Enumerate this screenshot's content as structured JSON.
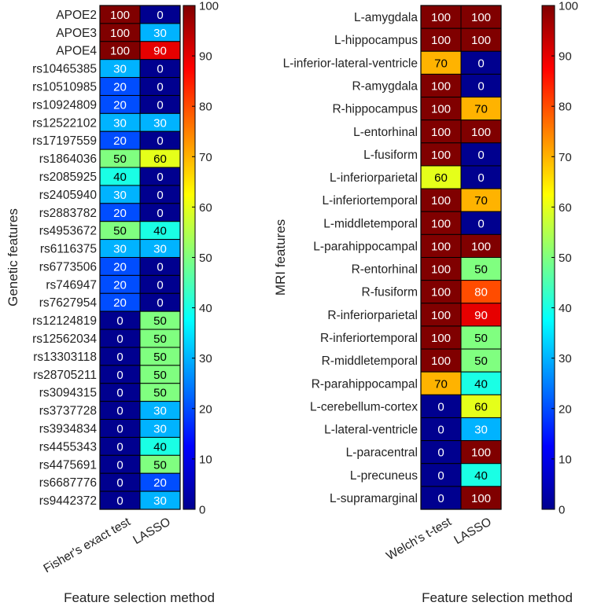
{
  "chart_data": [
    {
      "type": "heatmap",
      "xlabel": "Feature selection method",
      "ylabel": "Genetic features",
      "columns": [
        "Fisher's exact test",
        "LASSO"
      ],
      "rows": [
        "APOE2",
        "APOE3",
        "APOE4",
        "rs10465385",
        "rs10510985",
        "rs10924809",
        "rs12522102",
        "rs17197559",
        "rs1864036",
        "rs2085925",
        "rs2405940",
        "rs2883782",
        "rs4953672",
        "rs6116375",
        "rs6773506",
        "rs746947",
        "rs7627954",
        "rs12124819",
        "rs12562034",
        "rs13303118",
        "rs28705211",
        "rs3094315",
        "rs3737728",
        "rs3934834",
        "rs4455343",
        "rs4475691",
        "rs6687776",
        "rs9442372"
      ],
      "values": [
        [
          100,
          0
        ],
        [
          100,
          30
        ],
        [
          100,
          90
        ],
        [
          30,
          0
        ],
        [
          20,
          0
        ],
        [
          20,
          0
        ],
        [
          30,
          30
        ],
        [
          20,
          0
        ],
        [
          50,
          60
        ],
        [
          40,
          0
        ],
        [
          30,
          0
        ],
        [
          20,
          0
        ],
        [
          50,
          40
        ],
        [
          30,
          30
        ],
        [
          20,
          0
        ],
        [
          20,
          0
        ],
        [
          20,
          0
        ],
        [
          0,
          50
        ],
        [
          0,
          50
        ],
        [
          0,
          50
        ],
        [
          0,
          50
        ],
        [
          0,
          50
        ],
        [
          0,
          30
        ],
        [
          0,
          30
        ],
        [
          0,
          40
        ],
        [
          0,
          50
        ],
        [
          0,
          20
        ],
        [
          0,
          30
        ]
      ],
      "colorbar": {
        "min": 0,
        "max": 100,
        "ticks": [
          0,
          10,
          20,
          30,
          40,
          50,
          60,
          70,
          80,
          90,
          100
        ],
        "colormap": "jet"
      }
    },
    {
      "type": "heatmap",
      "xlabel": "Feature selection method",
      "ylabel": "MRI features",
      "columns": [
        "Welch's t-test",
        "LASSO"
      ],
      "rows": [
        "L-amygdala",
        "L-hippocampus",
        "L-inferior-lateral-ventricle",
        "R-amygdala",
        "R-hippocampus",
        "L-entorhinal",
        "L-fusiform",
        "L-inferiorparietal",
        "L-inferiortemporal",
        "L-middletemporal",
        "L-parahippocampal",
        "R-entorhinal",
        "R-fusiform",
        "R-inferiorparietal",
        "R-inferiortemporal",
        "R-middletemporal",
        "R-parahippocampal",
        "L-cerebellum-cortex",
        "L-lateral-ventricle",
        "L-paracentral",
        "L-precuneus",
        "L-supramarginal"
      ],
      "values": [
        [
          100,
          100
        ],
        [
          100,
          100
        ],
        [
          70,
          0
        ],
        [
          100,
          0
        ],
        [
          100,
          70
        ],
        [
          100,
          100
        ],
        [
          100,
          0
        ],
        [
          60,
          0
        ],
        [
          100,
          70
        ],
        [
          100,
          0
        ],
        [
          100,
          100
        ],
        [
          100,
          50
        ],
        [
          100,
          80
        ],
        [
          100,
          90
        ],
        [
          100,
          50
        ],
        [
          100,
          50
        ],
        [
          70,
          40
        ],
        [
          0,
          60
        ],
        [
          0,
          30
        ],
        [
          0,
          100
        ],
        [
          0,
          40
        ],
        [
          0,
          100
        ]
      ],
      "colorbar": {
        "min": 0,
        "max": 100,
        "ticks": [
          0,
          10,
          20,
          30,
          40,
          50,
          60,
          70,
          80,
          90,
          100
        ],
        "colormap": "jet"
      }
    }
  ]
}
